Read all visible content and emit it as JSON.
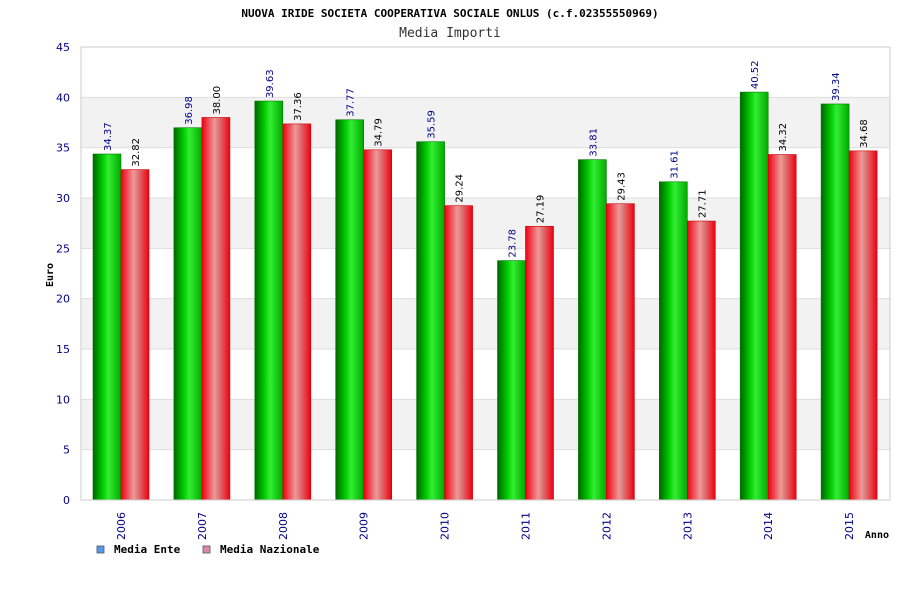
{
  "chart_data": {
    "type": "bar",
    "title": "NUOVA IRIDE SOCIETA COOPERATIVA SOCIALE ONLUS (c.f.02355550969)",
    "subtitle": "Media Importi",
    "xlabel": "Anno",
    "ylabel": "Euro",
    "ylim": [
      0,
      45
    ],
    "yticks": [
      0,
      5,
      10,
      15,
      20,
      25,
      30,
      35,
      40,
      45
    ],
    "grid": true,
    "legend_position": "bottom-left",
    "categories": [
      "2006",
      "2007",
      "2008",
      "2009",
      "2010",
      "2011",
      "2012",
      "2013",
      "2014",
      "2015"
    ],
    "series": [
      {
        "name": "Media Ente",
        "color": "#00bb00",
        "legend_color": "#5599ee",
        "label_color": "#000088",
        "values": [
          34.37,
          36.98,
          39.63,
          37.77,
          35.59,
          23.78,
          33.81,
          31.61,
          40.52,
          39.34
        ]
      },
      {
        "name": "Media Nazionale",
        "color": "#ee1122",
        "legend_color": "#dd88aa",
        "label_color": "#000000",
        "values": [
          32.82,
          38.0,
          37.36,
          34.79,
          29.24,
          27.19,
          29.43,
          27.71,
          34.32,
          34.68
        ]
      }
    ],
    "value_labels": [
      [
        "34.37",
        "36.98",
        "39.63",
        "37.77",
        "35.59",
        "23.78",
        "33.81",
        "31.61",
        "40.52",
        "39.34"
      ],
      [
        "32.82",
        "38.00",
        "37.36",
        "34.79",
        "29.24",
        "27.19",
        "29.43",
        "27.71",
        "34.32",
        "34.68"
      ]
    ]
  }
}
